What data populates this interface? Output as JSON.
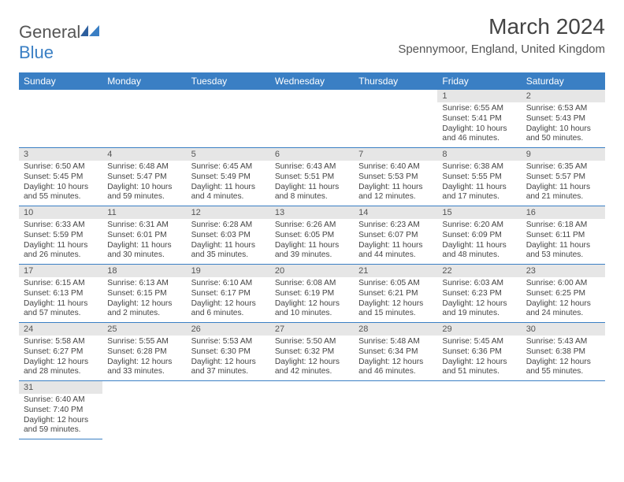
{
  "logo": {
    "text1": "General",
    "text2": "Blue"
  },
  "title": "March 2024",
  "location": "Spennymoor, England, United Kingdom",
  "colors": {
    "header_bg": "#3a7fc4",
    "daynum_bg": "#e6e6e6",
    "border": "#3a7fc4"
  },
  "weekdays": [
    "Sunday",
    "Monday",
    "Tuesday",
    "Wednesday",
    "Thursday",
    "Friday",
    "Saturday"
  ],
  "days": [
    {
      "n": "",
      "empty": true
    },
    {
      "n": "",
      "empty": true
    },
    {
      "n": "",
      "empty": true
    },
    {
      "n": "",
      "empty": true
    },
    {
      "n": "",
      "empty": true
    },
    {
      "n": "1",
      "sr": "6:55 AM",
      "ss": "5:41 PM",
      "dl": "10 hours and 46 minutes."
    },
    {
      "n": "2",
      "sr": "6:53 AM",
      "ss": "5:43 PM",
      "dl": "10 hours and 50 minutes."
    },
    {
      "n": "3",
      "sr": "6:50 AM",
      "ss": "5:45 PM",
      "dl": "10 hours and 55 minutes."
    },
    {
      "n": "4",
      "sr": "6:48 AM",
      "ss": "5:47 PM",
      "dl": "10 hours and 59 minutes."
    },
    {
      "n": "5",
      "sr": "6:45 AM",
      "ss": "5:49 PM",
      "dl": "11 hours and 4 minutes."
    },
    {
      "n": "6",
      "sr": "6:43 AM",
      "ss": "5:51 PM",
      "dl": "11 hours and 8 minutes."
    },
    {
      "n": "7",
      "sr": "6:40 AM",
      "ss": "5:53 PM",
      "dl": "11 hours and 12 minutes."
    },
    {
      "n": "8",
      "sr": "6:38 AM",
      "ss": "5:55 PM",
      "dl": "11 hours and 17 minutes."
    },
    {
      "n": "9",
      "sr": "6:35 AM",
      "ss": "5:57 PM",
      "dl": "11 hours and 21 minutes."
    },
    {
      "n": "10",
      "sr": "6:33 AM",
      "ss": "5:59 PM",
      "dl": "11 hours and 26 minutes."
    },
    {
      "n": "11",
      "sr": "6:31 AM",
      "ss": "6:01 PM",
      "dl": "11 hours and 30 minutes."
    },
    {
      "n": "12",
      "sr": "6:28 AM",
      "ss": "6:03 PM",
      "dl": "11 hours and 35 minutes."
    },
    {
      "n": "13",
      "sr": "6:26 AM",
      "ss": "6:05 PM",
      "dl": "11 hours and 39 minutes."
    },
    {
      "n": "14",
      "sr": "6:23 AM",
      "ss": "6:07 PM",
      "dl": "11 hours and 44 minutes."
    },
    {
      "n": "15",
      "sr": "6:20 AM",
      "ss": "6:09 PM",
      "dl": "11 hours and 48 minutes."
    },
    {
      "n": "16",
      "sr": "6:18 AM",
      "ss": "6:11 PM",
      "dl": "11 hours and 53 minutes."
    },
    {
      "n": "17",
      "sr": "6:15 AM",
      "ss": "6:13 PM",
      "dl": "11 hours and 57 minutes."
    },
    {
      "n": "18",
      "sr": "6:13 AM",
      "ss": "6:15 PM",
      "dl": "12 hours and 2 minutes."
    },
    {
      "n": "19",
      "sr": "6:10 AM",
      "ss": "6:17 PM",
      "dl": "12 hours and 6 minutes."
    },
    {
      "n": "20",
      "sr": "6:08 AM",
      "ss": "6:19 PM",
      "dl": "12 hours and 10 minutes."
    },
    {
      "n": "21",
      "sr": "6:05 AM",
      "ss": "6:21 PM",
      "dl": "12 hours and 15 minutes."
    },
    {
      "n": "22",
      "sr": "6:03 AM",
      "ss": "6:23 PM",
      "dl": "12 hours and 19 minutes."
    },
    {
      "n": "23",
      "sr": "6:00 AM",
      "ss": "6:25 PM",
      "dl": "12 hours and 24 minutes."
    },
    {
      "n": "24",
      "sr": "5:58 AM",
      "ss": "6:27 PM",
      "dl": "12 hours and 28 minutes."
    },
    {
      "n": "25",
      "sr": "5:55 AM",
      "ss": "6:28 PM",
      "dl": "12 hours and 33 minutes."
    },
    {
      "n": "26",
      "sr": "5:53 AM",
      "ss": "6:30 PM",
      "dl": "12 hours and 37 minutes."
    },
    {
      "n": "27",
      "sr": "5:50 AM",
      "ss": "6:32 PM",
      "dl": "12 hours and 42 minutes."
    },
    {
      "n": "28",
      "sr": "5:48 AM",
      "ss": "6:34 PM",
      "dl": "12 hours and 46 minutes."
    },
    {
      "n": "29",
      "sr": "5:45 AM",
      "ss": "6:36 PM",
      "dl": "12 hours and 51 minutes."
    },
    {
      "n": "30",
      "sr": "5:43 AM",
      "ss": "6:38 PM",
      "dl": "12 hours and 55 minutes."
    },
    {
      "n": "31",
      "sr": "6:40 AM",
      "ss": "7:40 PM",
      "dl": "12 hours and 59 minutes."
    },
    {
      "n": "",
      "empty": true
    },
    {
      "n": "",
      "empty": true
    },
    {
      "n": "",
      "empty": true
    },
    {
      "n": "",
      "empty": true
    },
    {
      "n": "",
      "empty": true
    },
    {
      "n": "",
      "empty": true
    }
  ],
  "labels": {
    "sunrise": "Sunrise: ",
    "sunset": "Sunset: ",
    "daylight": "Daylight: "
  }
}
